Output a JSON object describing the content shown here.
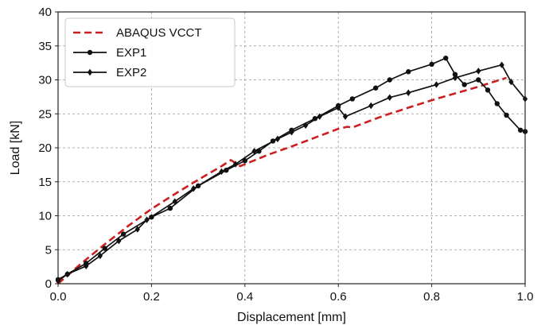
{
  "chart_data": {
    "type": "line",
    "title": "",
    "xlabel": "Displacement [mm]",
    "ylabel": "Load [kN]",
    "xlim": [
      0,
      1.0
    ],
    "ylim": [
      0,
      40
    ],
    "xticks": [
      0.0,
      0.2,
      0.4,
      0.6,
      0.8,
      1.0
    ],
    "yticks": [
      0,
      5,
      10,
      15,
      20,
      25,
      30,
      35,
      40
    ],
    "xtick_labels": [
      "0.0",
      "0.2",
      "0.4",
      "0.6",
      "0.8",
      "1.0"
    ],
    "ytick_labels": [
      "0",
      "5",
      "10",
      "15",
      "20",
      "25",
      "30",
      "35",
      "40"
    ],
    "grid": true,
    "legend_position": "top-left",
    "series": [
      {
        "name": "ABAQUS VCCT",
        "color": "#cc1f1f",
        "style": "dashed",
        "marker": "none",
        "points": [
          [
            0.0,
            0.0
          ],
          [
            0.05,
            3.0
          ],
          [
            0.1,
            5.8
          ],
          [
            0.15,
            8.5
          ],
          [
            0.2,
            11.0
          ],
          [
            0.25,
            13.2
          ],
          [
            0.3,
            15.3
          ],
          [
            0.35,
            17.3
          ],
          [
            0.37,
            18.2
          ],
          [
            0.39,
            17.3
          ],
          [
            0.45,
            19.0
          ],
          [
            0.5,
            20.2
          ],
          [
            0.55,
            21.5
          ],
          [
            0.6,
            22.8
          ],
          [
            0.62,
            23.1
          ],
          [
            0.63,
            23.0
          ],
          [
            0.7,
            24.8
          ],
          [
            0.8,
            27.0
          ],
          [
            0.9,
            29.0
          ],
          [
            0.96,
            30.3
          ]
        ]
      },
      {
        "name": "EXP1",
        "color": "#111111",
        "style": "solid",
        "marker": "circle",
        "points": [
          [
            0.0,
            0.6
          ],
          [
            0.02,
            1.4
          ],
          [
            0.06,
            3.0
          ],
          [
            0.1,
            5.2
          ],
          [
            0.14,
            7.3
          ],
          [
            0.2,
            9.8
          ],
          [
            0.24,
            11.1
          ],
          [
            0.3,
            14.4
          ],
          [
            0.36,
            16.7
          ],
          [
            0.4,
            18.1
          ],
          [
            0.43,
            19.5
          ],
          [
            0.46,
            21.0
          ],
          [
            0.5,
            22.6
          ],
          [
            0.55,
            24.3
          ],
          [
            0.6,
            26.2
          ],
          [
            0.63,
            27.2
          ],
          [
            0.68,
            28.8
          ],
          [
            0.71,
            30.0
          ],
          [
            0.75,
            31.2
          ],
          [
            0.8,
            32.3
          ],
          [
            0.83,
            33.2
          ],
          [
            0.85,
            30.8
          ],
          [
            0.87,
            29.3
          ],
          [
            0.9,
            30.0
          ],
          [
            0.92,
            28.5
          ],
          [
            0.94,
            26.5
          ],
          [
            0.96,
            24.8
          ],
          [
            0.99,
            22.6
          ],
          [
            1.0,
            22.4
          ]
        ]
      },
      {
        "name": "EXP2",
        "color": "#111111",
        "style": "solid",
        "marker": "diamond",
        "points": [
          [
            0.0,
            0.4
          ],
          [
            0.02,
            1.4
          ],
          [
            0.06,
            2.6
          ],
          [
            0.09,
            4.1
          ],
          [
            0.13,
            6.3
          ],
          [
            0.17,
            8.0
          ],
          [
            0.19,
            9.4
          ],
          [
            0.25,
            12.1
          ],
          [
            0.29,
            14.0
          ],
          [
            0.35,
            16.5
          ],
          [
            0.38,
            17.6
          ],
          [
            0.42,
            19.5
          ],
          [
            0.47,
            21.3
          ],
          [
            0.5,
            22.3
          ],
          [
            0.53,
            23.3
          ],
          [
            0.56,
            24.6
          ],
          [
            0.6,
            25.9
          ],
          [
            0.615,
            24.6
          ],
          [
            0.67,
            26.2
          ],
          [
            0.71,
            27.4
          ],
          [
            0.75,
            28.1
          ],
          [
            0.81,
            29.3
          ],
          [
            0.85,
            30.3
          ],
          [
            0.9,
            31.3
          ],
          [
            0.95,
            32.2
          ],
          [
            0.97,
            29.7
          ],
          [
            1.0,
            27.2
          ]
        ]
      }
    ]
  }
}
